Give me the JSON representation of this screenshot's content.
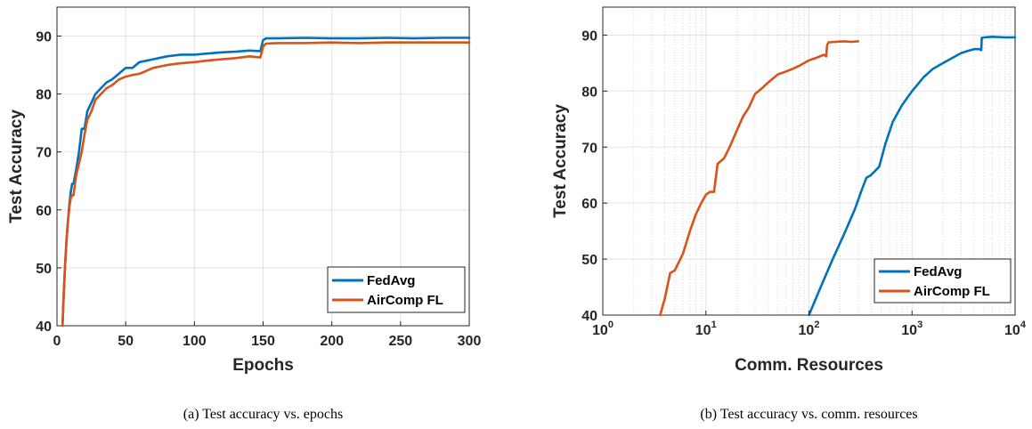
{
  "colors": {
    "fedavg": "#0072BD",
    "aircomp": "#D95319",
    "grid": "#e3e3e3",
    "axis": "#262626"
  },
  "chart_data": [
    {
      "type": "line",
      "caption": "(a) Test accuracy vs. epochs",
      "xlabel": "Epochs",
      "ylabel": "Test Accuracy",
      "xlim": [
        0,
        300
      ],
      "ylim": [
        40,
        95
      ],
      "xticks": [
        0,
        50,
        100,
        150,
        200,
        250,
        300
      ],
      "yticks": [
        40,
        50,
        60,
        70,
        80,
        90
      ],
      "xtick_labels": [
        "0",
        "50",
        "100",
        "150",
        "200",
        "250",
        "300"
      ],
      "ytick_labels": [
        "40",
        "50",
        "60",
        "70",
        "80",
        "90"
      ],
      "grid": true,
      "legend_position": "bottom-right",
      "series": [
        {
          "name": "FedAvg",
          "color": "#0072BD",
          "x": [
            4,
            5,
            6,
            7,
            8,
            9,
            10,
            11,
            12,
            14,
            16,
            18,
            20,
            22,
            25,
            28,
            32,
            36,
            40,
            45,
            50,
            55,
            60,
            70,
            80,
            90,
            100,
            110,
            120,
            130,
            140,
            148,
            150,
            152,
            160,
            180,
            200,
            220,
            240,
            260,
            280,
            300
          ],
          "y": [
            40,
            46,
            51,
            55,
            58,
            61,
            63,
            64.5,
            64.5,
            67,
            70,
            74,
            74,
            77,
            78.5,
            80,
            81,
            82,
            82.5,
            83.5,
            84.5,
            84.5,
            85.5,
            86,
            86.5,
            86.8,
            86.8,
            87,
            87.2,
            87.3,
            87.5,
            87.4,
            89.3,
            89.6,
            89.6,
            89.7,
            89.6,
            89.6,
            89.7,
            89.6,
            89.7,
            89.7
          ]
        },
        {
          "name": "AirComp FL",
          "color": "#D95319",
          "x": [
            4,
            5,
            6,
            7,
            8,
            9,
            10,
            11,
            12,
            14,
            16,
            18,
            20,
            22,
            25,
            28,
            32,
            36,
            40,
            45,
            50,
            55,
            60,
            70,
            80,
            90,
            100,
            110,
            120,
            130,
            140,
            148,
            150,
            152,
            160,
            180,
            200,
            220,
            240,
            260,
            280,
            300
          ],
          "y": [
            40,
            46,
            51,
            55,
            58,
            60.5,
            62,
            62.5,
            62.5,
            66,
            68,
            70,
            73,
            75.5,
            77,
            79,
            80,
            81,
            81.5,
            82.5,
            83,
            83.3,
            83.5,
            84.5,
            85,
            85.3,
            85.5,
            85.8,
            86,
            86.2,
            86.5,
            86.3,
            88.2,
            88.7,
            88.8,
            88.8,
            88.9,
            88.8,
            88.9,
            88.9,
            88.9,
            88.9
          ]
        }
      ]
    },
    {
      "type": "line",
      "caption": "(b) Test accuracy vs. comm. resources",
      "xlabel": "Comm. Resources",
      "ylabel": "Test Accuracy",
      "xscale": "log",
      "xlim": [
        1,
        10000
      ],
      "ylim": [
        40,
        95
      ],
      "xticks": [
        1,
        10,
        100,
        1000,
        10000
      ],
      "xtick_labels": [
        {
          "base": "10",
          "exp": "0"
        },
        {
          "base": "10",
          "exp": "1"
        },
        {
          "base": "10",
          "exp": "2"
        },
        {
          "base": "10",
          "exp": "3"
        },
        {
          "base": "10",
          "exp": "4"
        }
      ],
      "yticks": [
        40,
        50,
        60,
        70,
        80,
        90
      ],
      "ytick_labels": [
        "40",
        "50",
        "60",
        "70",
        "80",
        "90"
      ],
      "grid": true,
      "legend_position": "bottom-right",
      "series": [
        {
          "name": "FedAvg",
          "color": "#0072BD",
          "x": [
            100,
            130,
            170,
            220,
            280,
            320,
            360,
            400,
            480,
            550,
            650,
            800,
            1000,
            1300,
            1600,
            2000,
            2500,
            3000,
            3500,
            4000,
            4500,
            4700,
            4750,
            5000,
            6000,
            8000,
            10000
          ],
          "y": [
            40,
            45,
            50,
            54.5,
            59,
            62,
            64.5,
            65,
            66.5,
            70.5,
            74.5,
            77.5,
            80,
            82.5,
            84,
            85,
            86,
            86.8,
            87.2,
            87.5,
            87.5,
            87.3,
            89.5,
            89.6,
            89.7,
            89.6,
            89.6
          ]
        },
        {
          "name": "AirComp FL",
          "color": "#D95319",
          "x": [
            3.6,
            4,
            4.5,
            5,
            6,
            7,
            8,
            9,
            10,
            11,
            12,
            13,
            15,
            17,
            20,
            23,
            26,
            30,
            35,
            40,
            50,
            60,
            70,
            80,
            100,
            120,
            140,
            147,
            150,
            155,
            180,
            220,
            260,
            300
          ],
          "y": [
            40,
            43,
            47.5,
            48,
            51,
            55,
            58,
            60,
            61.5,
            62,
            62,
            67,
            68,
            70,
            73,
            75.5,
            77,
            79.5,
            80.5,
            81.5,
            83,
            83.5,
            84,
            84.5,
            85.5,
            86,
            86.5,
            86.2,
            88.2,
            88.7,
            88.8,
            88.9,
            88.8,
            88.9
          ]
        }
      ]
    }
  ]
}
